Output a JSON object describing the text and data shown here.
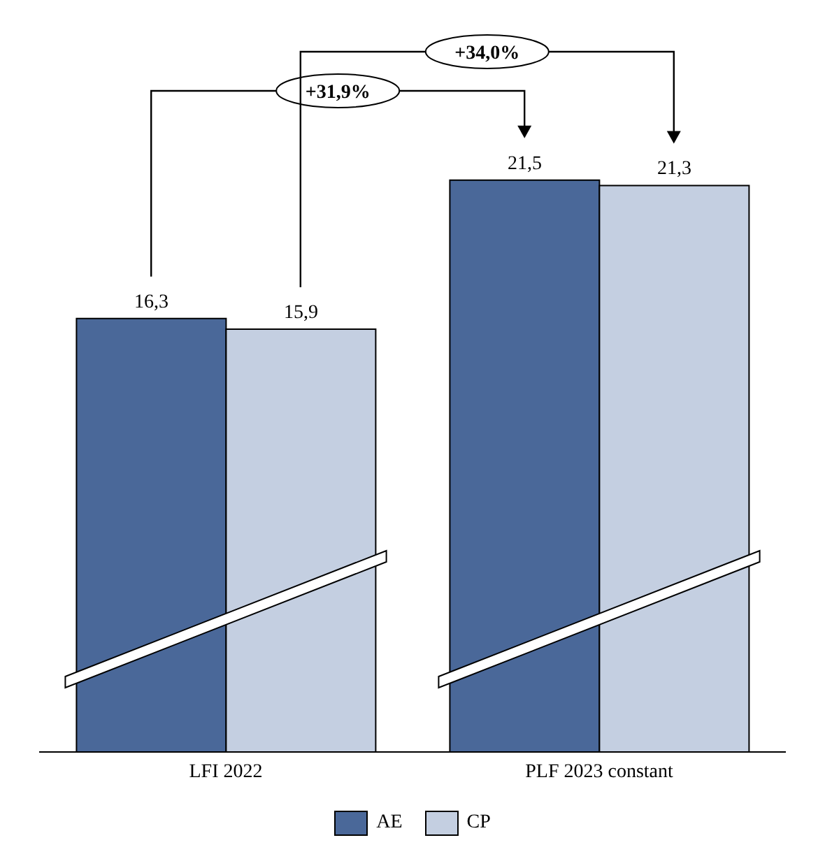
{
  "chart_data": {
    "type": "bar",
    "categories": [
      "LFI 2022",
      "PLF 2023 constant"
    ],
    "series": [
      {
        "name": "AE",
        "color": "#4a6899",
        "values": [
          16.3,
          21.5
        ],
        "value_labels": [
          "16,3",
          "21,5"
        ]
      },
      {
        "name": "CP",
        "color": "#c4cfe1",
        "values": [
          15.9,
          21.3
        ],
        "value_labels": [
          "15,9",
          "21,3"
        ]
      }
    ],
    "annotations": [
      "+31,9%",
      "+34,0%"
    ],
    "legend": "bottom"
  }
}
